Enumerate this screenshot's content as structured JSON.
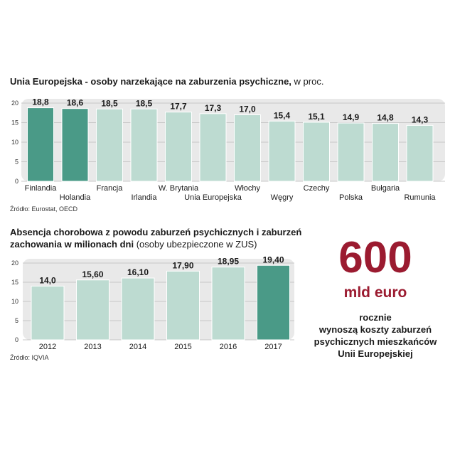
{
  "colors": {
    "highlight": "#4a9a87",
    "normal": "#bddbd1",
    "panel": "#e9e9e9",
    "grid": "#c8c8c8",
    "accent": "#9b1b30"
  },
  "chart1": {
    "title": "Unia Europejska - osoby narzekające na zaburzenia psychiczne,",
    "title_suffix": " w proc.",
    "source": "Źródło: Eurostat, OECD"
  },
  "chart2": {
    "title_line1": "Absencja chorobowa z powodu zaburzeń psychicznych i zaburzeń",
    "title_line2": "zachowania w  milionach dni",
    "title_suffix": " (osoby ubezpieczone w ZUS)",
    "source": "Źródło: IQVIA"
  },
  "callout": {
    "number": "600",
    "unit": "mld euro",
    "text_lines": [
      "rocznie",
      "wynoszą koszty zaburzeń",
      "psychicznych mieszkańców",
      "Unii Europejskiej"
    ]
  },
  "chart_data": [
    {
      "type": "bar",
      "title": "Unia Europejska - osoby narzekające na zaburzenia psychiczne, w proc.",
      "categories": [
        "Finlandia",
        "Holandia",
        "Francja",
        "Irlandia",
        "W. Brytania",
        "Unia Europejska",
        "Włochy",
        "Węgry",
        "Czechy",
        "Polska",
        "Bułgaria",
        "Rumunia"
      ],
      "values": [
        18.8,
        18.6,
        18.5,
        18.5,
        17.7,
        17.3,
        17.0,
        15.4,
        15.1,
        14.9,
        14.8,
        14.3
      ],
      "value_labels": [
        "18,8",
        "18,6",
        "18,5",
        "18,5",
        "17,7",
        "17,3",
        "17,0",
        "15,4",
        "15,1",
        "14,9",
        "14,8",
        "14,3"
      ],
      "highlighted": [
        "Finlandia",
        "Holandia"
      ],
      "yticks": [
        0,
        5,
        10,
        15,
        20
      ],
      "ylim": [
        0,
        20
      ],
      "grid": true,
      "xlabel": "",
      "ylabel": ""
    },
    {
      "type": "bar",
      "title": "Absencja chorobowa z powodu zaburzeń psychicznych i zaburzeń zachowania w milionach dni (osoby ubezpieczone w ZUS)",
      "categories": [
        "2012",
        "2013",
        "2014",
        "2015",
        "2016",
        "2017"
      ],
      "values": [
        14.0,
        15.6,
        16.1,
        17.9,
        18.95,
        19.4
      ],
      "value_labels": [
        "14,0",
        "15,60",
        "16,10",
        "17,90",
        "18,95",
        "19,40"
      ],
      "highlighted": [
        "2017"
      ],
      "yticks": [
        0,
        5,
        10,
        15,
        20
      ],
      "ylim": [
        0,
        20
      ],
      "grid": true,
      "xlabel": "",
      "ylabel": ""
    }
  ]
}
